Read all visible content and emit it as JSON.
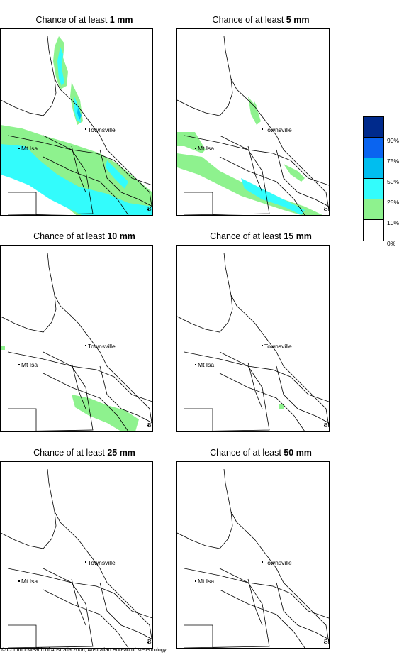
{
  "panels": [
    {
      "prefix": "Chance of at least ",
      "amount": "1 mm",
      "rain_level": "1"
    },
    {
      "prefix": "Chance of at least ",
      "amount": "5 mm",
      "rain_level": "5"
    },
    {
      "prefix": "Chance of at least ",
      "amount": "10 mm",
      "rain_level": "10"
    },
    {
      "prefix": "Chance of at least ",
      "amount": "15 mm",
      "rain_level": "15"
    },
    {
      "prefix": "Chance of at least ",
      "amount": "25 mm",
      "rain_level": "25"
    },
    {
      "prefix": "Chance of at least ",
      "amount": "50 mm",
      "rain_level": "50"
    }
  ],
  "places": {
    "townsville": "Townsville",
    "mt_isa": "Mt Isa",
    "bris": "BRIS"
  },
  "legend": {
    "labels": [
      "90%",
      "75%",
      "50%",
      "25%",
      "10%",
      "0%"
    ],
    "colors": [
      "#002a8c",
      "#0a64f0",
      "#00beef",
      "#33fcfc",
      "#8ef28e",
      "#ffffff"
    ]
  },
  "copyright": "© Commonwealth of Australia 2006, Australian Bureau of Meteorology"
}
